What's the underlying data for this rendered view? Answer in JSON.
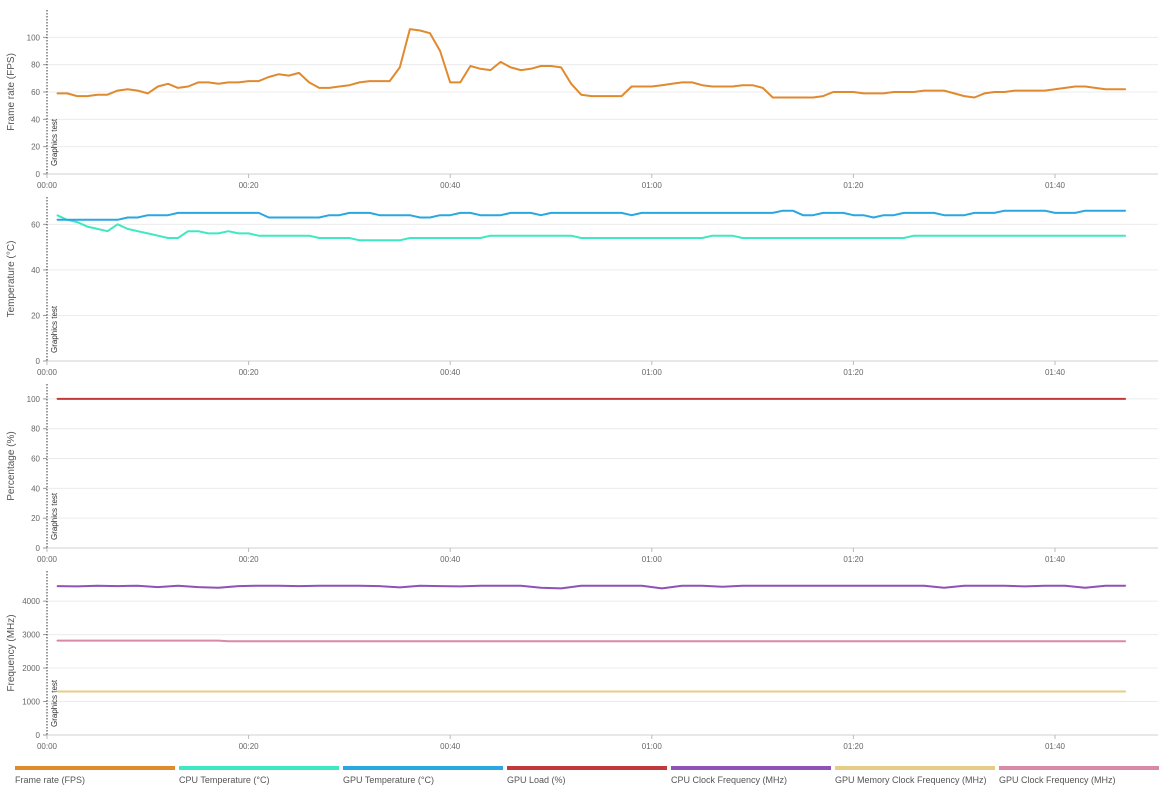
{
  "x_ticks": [
    "00:00",
    "00:20",
    "00:40",
    "01:00",
    "01:20",
    "01:40"
  ],
  "x_tick_seconds": [
    0,
    20,
    40,
    60,
    80,
    100
  ],
  "marker_label": "Graphics test",
  "colors": {
    "fps": "#e08a30",
    "cpu_temp": "#3ee8c2",
    "gpu_temp": "#2aa7e0",
    "gpu_load": "#c0393b",
    "cpu_clock": "#8e52b8",
    "gpu_mem_clock": "#e6cc85",
    "gpu_clock": "#d988a8"
  },
  "legend": [
    {
      "label": "Frame rate (FPS)",
      "color": "#e08a30"
    },
    {
      "label": "CPU Temperature (°C)",
      "color": "#3ee8c2"
    },
    {
      "label": "GPU Temperature (°C)",
      "color": "#2aa7e0"
    },
    {
      "label": "GPU Load (%)",
      "color": "#c0393b"
    },
    {
      "label": "CPU Clock Frequency (MHz)",
      "color": "#8e52b8"
    },
    {
      "label": "GPU Memory Clock Frequency (MHz)",
      "color": "#e6cc85"
    },
    {
      "label": "GPU Clock Frequency (MHz)",
      "color": "#d988a8"
    }
  ],
  "chart_data": [
    {
      "type": "line",
      "ylabel": "Frame rate (FPS)",
      "ylim": [
        0,
        120
      ],
      "yticks": [
        0,
        20,
        40,
        60,
        80,
        100
      ],
      "xlim": [
        0,
        110
      ],
      "grid": true,
      "series": [
        {
          "name": "Frame rate (FPS)",
          "color_key": "fps",
          "x": [
            1,
            2,
            3,
            4,
            5,
            6,
            7,
            8,
            9,
            10,
            11,
            12,
            13,
            14,
            15,
            16,
            17,
            18,
            19,
            20,
            21,
            22,
            23,
            24,
            25,
            26,
            27,
            28,
            29,
            30,
            31,
            32,
            33,
            34,
            35,
            36,
            37,
            38,
            39,
            40,
            41,
            42,
            43,
            44,
            45,
            46,
            47,
            48,
            49,
            50,
            51,
            52,
            53,
            54,
            55,
            56,
            57,
            58,
            59,
            60,
            61,
            62,
            63,
            64,
            65,
            66,
            67,
            68,
            69,
            70,
            71,
            72,
            73,
            74,
            75,
            76,
            77,
            78,
            79,
            80,
            81,
            82,
            83,
            84,
            85,
            86,
            87,
            88,
            89,
            90,
            91,
            92,
            93,
            94,
            95,
            96,
            97,
            98,
            99,
            100,
            101,
            102,
            103,
            104,
            105,
            106,
            107
          ],
          "y": [
            59,
            59,
            57,
            57,
            58,
            58,
            61,
            62,
            61,
            59,
            64,
            66,
            63,
            64,
            67,
            67,
            66,
            67,
            67,
            68,
            68,
            71,
            73,
            72,
            74,
            67,
            63,
            63,
            64,
            65,
            67,
            68,
            68,
            68,
            78,
            106,
            105,
            103,
            90,
            67,
            67,
            79,
            77,
            76,
            82,
            78,
            76,
            77,
            79,
            79,
            78,
            66,
            58,
            57,
            57,
            57,
            57,
            64,
            64,
            64,
            65,
            66,
            67,
            67,
            65,
            64,
            64,
            64,
            65,
            65,
            63,
            56,
            56,
            56,
            56,
            56,
            57,
            60,
            60,
            60,
            59,
            59,
            59,
            60,
            60,
            60,
            61,
            61,
            61,
            59,
            57,
            56,
            59,
            60,
            60,
            61,
            61,
            61,
            61,
            62,
            63,
            64,
            64,
            63,
            62,
            62,
            62
          ]
        }
      ]
    },
    {
      "type": "line",
      "ylabel": "Temperature (°C)",
      "ylim": [
        0,
        72
      ],
      "yticks": [
        0,
        20,
        40,
        60
      ],
      "xlim": [
        0,
        110
      ],
      "grid": true,
      "series": [
        {
          "name": "CPU Temperature (°C)",
          "color_key": "cpu_temp",
          "x": [
            1,
            2,
            3,
            4,
            5,
            6,
            7,
            8,
            9,
            10,
            11,
            12,
            13,
            14,
            15,
            16,
            17,
            18,
            19,
            20,
            21,
            22,
            23,
            24,
            25,
            26,
            27,
            28,
            29,
            30,
            31,
            32,
            33,
            34,
            35,
            36,
            37,
            38,
            39,
            40,
            41,
            42,
            43,
            44,
            45,
            46,
            47,
            48,
            49,
            50,
            51,
            52,
            53,
            54,
            55,
            56,
            57,
            58,
            59,
            60,
            61,
            62,
            63,
            64,
            65,
            66,
            67,
            68,
            69,
            70,
            71,
            72,
            73,
            74,
            75,
            76,
            77,
            78,
            79,
            80,
            81,
            82,
            83,
            84,
            85,
            86,
            87,
            88,
            89,
            90,
            91,
            92,
            93,
            94,
            95,
            96,
            97,
            98,
            99,
            100,
            101,
            102,
            103,
            104,
            105,
            106,
            107
          ],
          "y": [
            64,
            62,
            61,
            59,
            58,
            57,
            60,
            58,
            57,
            56,
            55,
            54,
            54,
            57,
            57,
            56,
            56,
            57,
            56,
            56,
            55,
            55,
            55,
            55,
            55,
            55,
            54,
            54,
            54,
            54,
            53,
            53,
            53,
            53,
            53,
            54,
            54,
            54,
            54,
            54,
            54,
            54,
            54,
            55,
            55,
            55,
            55,
            55,
            55,
            55,
            55,
            55,
            54,
            54,
            54,
            54,
            54,
            54,
            54,
            54,
            54,
            54,
            54,
            54,
            54,
            55,
            55,
            55,
            54,
            54,
            54,
            54,
            54,
            54,
            54,
            54,
            54,
            54,
            54,
            54,
            54,
            54,
            54,
            54,
            54,
            55,
            55,
            55,
            55,
            55,
            55,
            55,
            55,
            55,
            55,
            55,
            55,
            55,
            55,
            55,
            55,
            55,
            55,
            55,
            55,
            55,
            55
          ]
        },
        {
          "name": "GPU Temperature (°C)",
          "color_key": "gpu_temp",
          "x": [
            1,
            2,
            3,
            4,
            5,
            6,
            7,
            8,
            9,
            10,
            11,
            12,
            13,
            14,
            15,
            16,
            17,
            18,
            19,
            20,
            21,
            22,
            23,
            24,
            25,
            26,
            27,
            28,
            29,
            30,
            31,
            32,
            33,
            34,
            35,
            36,
            37,
            38,
            39,
            40,
            41,
            42,
            43,
            44,
            45,
            46,
            47,
            48,
            49,
            50,
            51,
            52,
            53,
            54,
            55,
            56,
            57,
            58,
            59,
            60,
            61,
            62,
            63,
            64,
            65,
            66,
            67,
            68,
            69,
            70,
            71,
            72,
            73,
            74,
            75,
            76,
            77,
            78,
            79,
            80,
            81,
            82,
            83,
            84,
            85,
            86,
            87,
            88,
            89,
            90,
            91,
            92,
            93,
            94,
            95,
            96,
            97,
            98,
            99,
            100,
            101,
            102,
            103,
            104,
            105,
            106,
            107
          ],
          "y": [
            62,
            62,
            62,
            62,
            62,
            62,
            62,
            63,
            63,
            64,
            64,
            64,
            65,
            65,
            65,
            65,
            65,
            65,
            65,
            65,
            65,
            63,
            63,
            63,
            63,
            63,
            63,
            64,
            64,
            65,
            65,
            65,
            64,
            64,
            64,
            64,
            63,
            63,
            64,
            64,
            65,
            65,
            64,
            64,
            64,
            65,
            65,
            65,
            64,
            65,
            65,
            65,
            65,
            65,
            65,
            65,
            65,
            64,
            65,
            65,
            65,
            65,
            65,
            65,
            65,
            65,
            65,
            65,
            65,
            65,
            65,
            65,
            66,
            66,
            64,
            64,
            65,
            65,
            65,
            64,
            64,
            63,
            64,
            64,
            65,
            65,
            65,
            65,
            64,
            64,
            64,
            65,
            65,
            65,
            66,
            66,
            66,
            66,
            66,
            65,
            65,
            65,
            66,
            66,
            66,
            66,
            66
          ]
        }
      ]
    },
    {
      "type": "line",
      "ylabel": "Percentage (%)",
      "ylim": [
        0,
        110
      ],
      "yticks": [
        0,
        20,
        40,
        60,
        80,
        100
      ],
      "xlim": [
        0,
        110
      ],
      "grid": true,
      "series": [
        {
          "name": "GPU Load (%)",
          "color_key": "gpu_load",
          "x": [
            1,
            107
          ],
          "y": [
            100,
            100
          ]
        }
      ]
    },
    {
      "type": "line",
      "ylabel": "Frequency (MHz)",
      "ylim": [
        0,
        4900
      ],
      "yticks": [
        0,
        1000,
        2000,
        3000,
        4000
      ],
      "xlim": [
        0,
        110
      ],
      "grid": true,
      "series": [
        {
          "name": "CPU Clock Frequency (MHz)",
          "color_key": "cpu_clock",
          "x": [
            1,
            3,
            5,
            7,
            9,
            11,
            13,
            15,
            17,
            19,
            21,
            23,
            25,
            27,
            29,
            31,
            33,
            35,
            37,
            39,
            41,
            43,
            45,
            47,
            49,
            51,
            53,
            55,
            57,
            59,
            61,
            63,
            65,
            67,
            69,
            71,
            73,
            75,
            77,
            79,
            81,
            83,
            85,
            87,
            89,
            91,
            93,
            95,
            97,
            99,
            101,
            103,
            105,
            107
          ],
          "y": [
            4450,
            4440,
            4460,
            4450,
            4460,
            4420,
            4460,
            4420,
            4400,
            4450,
            4460,
            4460,
            4450,
            4460,
            4460,
            4460,
            4450,
            4410,
            4460,
            4450,
            4440,
            4460,
            4460,
            4460,
            4400,
            4380,
            4460,
            4460,
            4460,
            4460,
            4380,
            4460,
            4460,
            4430,
            4460,
            4460,
            4460,
            4460,
            4460,
            4460,
            4460,
            4460,
            4460,
            4460,
            4400,
            4460,
            4460,
            4460,
            4440,
            4460,
            4460,
            4400,
            4460,
            4460
          ]
        },
        {
          "name": "GPU Clock Frequency (MHz)",
          "color_key": "gpu_clock",
          "x": [
            1,
            17,
            18,
            107
          ],
          "y": [
            2820,
            2820,
            2800,
            2800
          ]
        },
        {
          "name": "GPU Memory Clock Frequency (MHz)",
          "color_key": "gpu_mem_clock",
          "x": [
            1,
            107
          ],
          "y": [
            1300,
            1300
          ]
        }
      ]
    }
  ]
}
